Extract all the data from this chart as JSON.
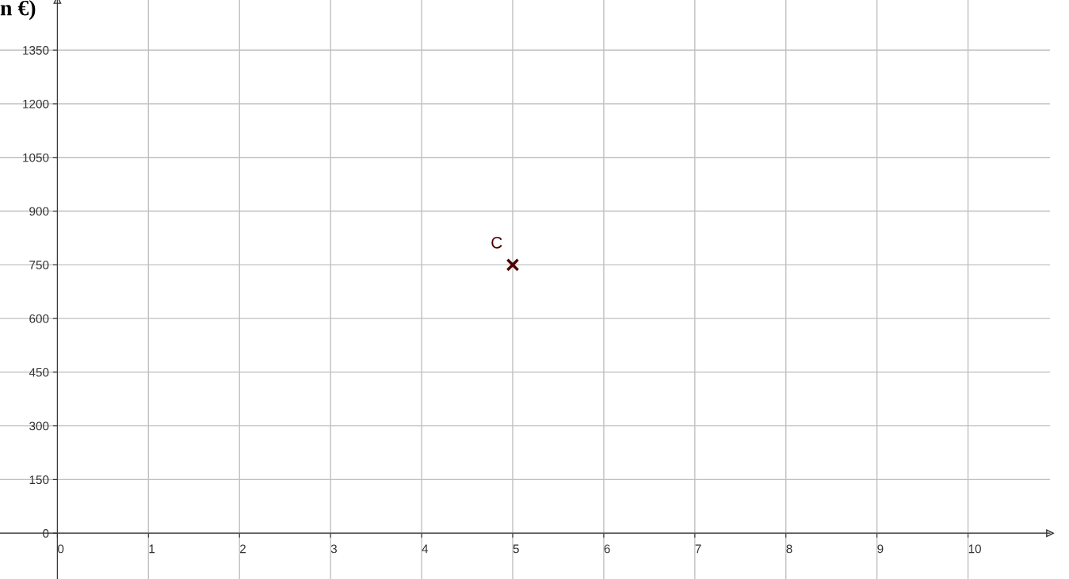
{
  "chart_data": {
    "type": "scatter",
    "ylabel": "n €)",
    "x": [
      5
    ],
    "series": [
      {
        "color": "#4d0000",
        "values": [
          750
        ]
      }
    ],
    "marker": "cross",
    "annotations": [
      {
        "text": "C",
        "x": 5,
        "y": 750
      }
    ],
    "xlim": [
      -0.63,
      10.9
    ],
    "ylim": [
      -128,
      1490
    ],
    "xticks": [
      0,
      1,
      2,
      3,
      4,
      5,
      6,
      7,
      8,
      9,
      10
    ],
    "yticks": [
      0,
      150,
      300,
      450,
      600,
      750,
      900,
      1050,
      1200,
      1350
    ],
    "grid": true
  }
}
